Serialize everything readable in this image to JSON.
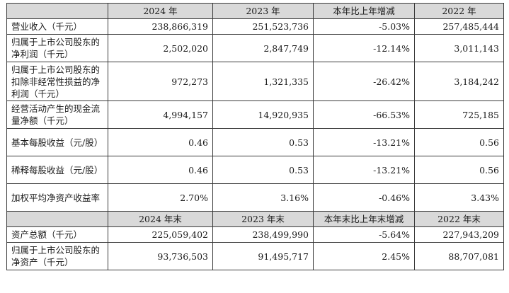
{
  "table": {
    "header_annual": [
      "",
      "2024 年",
      "2023 年",
      "本年比上年增减",
      "2022 年"
    ],
    "rows_annual": [
      {
        "label": "营业收入（千元）",
        "values": [
          "238,866,319",
          "251,523,736",
          "-5.03%",
          "257,485,444"
        ]
      },
      {
        "label": "归属于上市公司股东的净利润（千元）",
        "values": [
          "2,502,020",
          "2,847,749",
          "-12.14%",
          "3,011,143"
        ]
      },
      {
        "label": "归属于上市公司股东的扣除非经常性损益的净利润（千元）",
        "values": [
          "972,273",
          "1,321,335",
          "-26.42%",
          "3,184,242"
        ]
      },
      {
        "label": "经营活动产生的现金流量净额（千元）",
        "values": [
          "4,994,157",
          "14,920,935",
          "-66.53%",
          "725,185"
        ]
      },
      {
        "label": "基本每股收益（元/股）",
        "values": [
          "0.46",
          "0.53",
          "-13.21%",
          "0.56"
        ]
      },
      {
        "label": "稀释每股收益（元/股）",
        "values": [
          "0.46",
          "0.53",
          "-13.21%",
          "0.56"
        ]
      },
      {
        "label": "加权平均净资产收益率",
        "values": [
          "2.70%",
          "3.16%",
          "-0.46%",
          "3.43%"
        ]
      }
    ],
    "header_yearend": [
      "",
      "2024 年末",
      "2023 年末",
      "本年末比上年末增减",
      "2022 年末"
    ],
    "rows_yearend": [
      {
        "label": "资产总额（千元）",
        "values": [
          "225,059,402",
          "238,499,990",
          "-5.64%",
          "227,943,209"
        ]
      },
      {
        "label": "归属于上市公司股东的净资产（千元）",
        "values": [
          "93,736,503",
          "91,495,717",
          "2.45%",
          "88,707,081"
        ]
      }
    ]
  }
}
